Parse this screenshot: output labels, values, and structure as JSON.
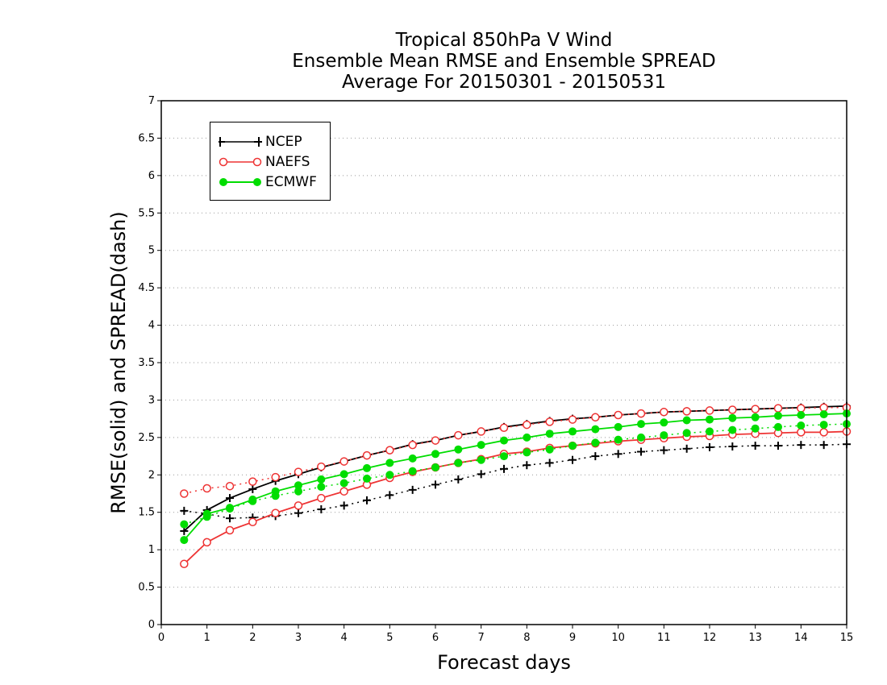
{
  "chart_data": {
    "type": "line",
    "title_lines": [
      "Tropical 850hPa V Wind",
      "Ensemble Mean RMSE and Ensemble SPREAD",
      "Average For 20150301 - 20150531"
    ],
    "xlabel": "Forecast days",
    "ylabel": "RMSE(solid)  and  SPREAD(dash)",
    "xlim": [
      0,
      15
    ],
    "ylim": [
      0,
      7
    ],
    "xticks": [
      "0",
      "1",
      "2",
      "3",
      "4",
      "5",
      "6",
      "7",
      "8",
      "9",
      "10",
      "11",
      "12",
      "13",
      "14",
      "15"
    ],
    "yticks": [
      "0",
      "0.5",
      "1",
      "1.5",
      "2",
      "2.5",
      "3",
      "3.5",
      "4",
      "4.5",
      "5",
      "5.5",
      "6",
      "6.5",
      "7"
    ],
    "grid": true,
    "legend_position": "top-left",
    "x": [
      0.5,
      1,
      1.5,
      2,
      2.5,
      3,
      3.5,
      4,
      4.5,
      5,
      5.5,
      6,
      6.5,
      7,
      7.5,
      8,
      8.5,
      9,
      9.5,
      10,
      10.5,
      11,
      11.5,
      12,
      12.5,
      13,
      13.5,
      14,
      14.5,
      15
    ],
    "series": [
      {
        "name": "NCEP",
        "color": "#000000",
        "marker": "plus",
        "rmse": [
          1.25,
          1.53,
          1.69,
          1.81,
          1.92,
          2.01,
          2.1,
          2.18,
          2.26,
          2.33,
          2.41,
          2.46,
          2.53,
          2.58,
          2.64,
          2.68,
          2.72,
          2.75,
          2.77,
          2.8,
          2.82,
          2.84,
          2.85,
          2.86,
          2.87,
          2.88,
          2.89,
          2.9,
          2.91,
          2.92
        ],
        "spread": [
          1.52,
          1.48,
          1.42,
          1.43,
          1.45,
          1.49,
          1.54,
          1.59,
          1.66,
          1.73,
          1.8,
          1.87,
          1.94,
          2.01,
          2.08,
          2.13,
          2.16,
          2.2,
          2.25,
          2.28,
          2.31,
          2.33,
          2.35,
          2.37,
          2.38,
          2.39,
          2.39,
          2.4,
          2.4,
          2.41
        ]
      },
      {
        "name": "NAEFS",
        "color": "#ee3333",
        "marker": "circle-open",
        "rmse": [
          0.81,
          1.1,
          1.26,
          1.37,
          1.49,
          1.59,
          1.69,
          1.78,
          1.87,
          1.96,
          2.04,
          2.1,
          2.16,
          2.21,
          2.28,
          2.31,
          2.36,
          2.39,
          2.42,
          2.45,
          2.47,
          2.49,
          2.51,
          2.52,
          2.54,
          2.55,
          2.56,
          2.57,
          2.57,
          2.58
        ],
        "spread": [
          1.75,
          1.82,
          1.85,
          1.91,
          1.97,
          2.04,
          2.11,
          2.18,
          2.26,
          2.33,
          2.4,
          2.46,
          2.53,
          2.58,
          2.63,
          2.67,
          2.71,
          2.74,
          2.77,
          2.8,
          2.82,
          2.84,
          2.85,
          2.86,
          2.87,
          2.88,
          2.89,
          2.89,
          2.9,
          2.9
        ]
      },
      {
        "name": "ECMWF",
        "color": "#00dd00",
        "marker": "circle-filled",
        "rmse": [
          1.13,
          1.48,
          1.56,
          1.67,
          1.78,
          1.86,
          1.94,
          2.01,
          2.09,
          2.16,
          2.22,
          2.28,
          2.34,
          2.4,
          2.46,
          2.5,
          2.55,
          2.58,
          2.61,
          2.64,
          2.68,
          2.7,
          2.73,
          2.74,
          2.76,
          2.77,
          2.79,
          2.8,
          2.81,
          2.82
        ],
        "spread": [
          1.34,
          1.44,
          1.55,
          1.65,
          1.72,
          1.78,
          1.84,
          1.89,
          1.95,
          2.0,
          2.05,
          2.1,
          2.16,
          2.2,
          2.25,
          2.3,
          2.34,
          2.39,
          2.43,
          2.47,
          2.5,
          2.53,
          2.56,
          2.58,
          2.6,
          2.62,
          2.64,
          2.66,
          2.67,
          2.68
        ]
      }
    ]
  }
}
